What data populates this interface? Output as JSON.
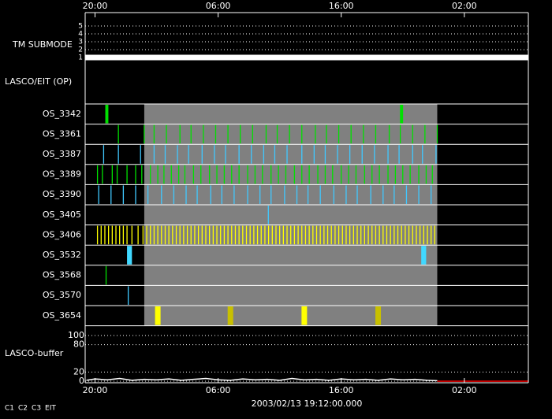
{
  "chart_data": {
    "type": "timeline",
    "date_label": "2003/02/13 19:12:00.000",
    "xlim": [
      19.2,
      55.2
    ],
    "xticks": [
      {
        "value": 20,
        "label": "20:00"
      },
      {
        "value": 30,
        "label": "06:00"
      },
      {
        "value": 40,
        "label": "16:00"
      },
      {
        "value": 50,
        "label": "02:00"
      }
    ],
    "submode": {
      "label": "TM SUBMODE",
      "ylim": [
        1,
        5
      ],
      "yticks": [
        1,
        2,
        3,
        4,
        5
      ],
      "x": [
        19.2,
        55.2
      ],
      "values": [
        1,
        1
      ],
      "color": "#ffffff"
    },
    "section_label": "LASCO/EIT (OP)",
    "window": [
      24.0,
      47.8
    ],
    "series": [
      {
        "name": "OS_3342",
        "color": "#00e000",
        "duration": 0.25,
        "times": [
          20.96,
          44.9
        ]
      },
      {
        "name": "OS_3361",
        "color": "#00e000",
        "times": [
          21.9,
          24.0,
          24.8,
          25.8,
          26.9,
          27.8,
          28.8,
          29.8,
          30.8,
          31.8,
          32.8,
          33.9,
          34.8,
          35.8,
          36.8,
          37.9,
          38.8,
          39.8,
          40.8,
          41.8,
          42.8,
          43.9,
          44.8,
          45.8,
          46.8,
          47.8
        ]
      },
      {
        "name": "OS_3387",
        "color": "#40c8ff",
        "times": [
          20.7,
          21.9,
          23.7,
          24.8,
          25.7,
          26.7,
          27.6,
          28.7,
          29.7,
          30.6,
          31.7,
          32.7,
          33.7,
          34.6,
          35.6,
          36.8,
          37.8,
          38.7,
          39.7,
          40.7,
          41.7,
          42.7,
          43.8,
          44.7,
          45.8,
          46.6,
          47.7
        ]
      },
      {
        "name": "OS_3389",
        "color": "#00e000",
        "times": [
          20.2,
          20.6,
          21.4,
          21.8,
          22.6,
          23.3,
          23.8,
          24.5,
          25.1,
          25.6,
          26.2,
          26.8,
          27.3,
          28.0,
          28.6,
          29.3,
          29.9,
          30.5,
          31.1,
          31.7,
          32.4,
          33.0,
          33.6,
          34.3,
          34.9,
          35.5,
          36.2,
          36.8,
          37.4,
          38.1,
          38.7,
          39.3,
          40.0,
          40.6,
          41.2,
          41.9,
          42.5,
          43.1,
          43.8,
          44.4,
          45.0,
          45.6,
          46.3,
          46.9,
          47.4
        ]
      },
      {
        "name": "OS_3390",
        "color": "#40c8ff",
        "times": [
          20.3,
          21.3,
          22.3,
          23.3,
          24.3,
          25.4,
          26.4,
          27.4,
          28.3,
          29.4,
          30.3,
          31.3,
          32.4,
          33.4,
          34.3,
          35.4,
          36.4,
          37.3,
          38.3,
          39.4,
          40.4,
          41.3,
          42.4,
          43.4,
          44.3,
          45.3,
          46.3,
          47.3
        ]
      },
      {
        "name": "OS_3405",
        "color": "#40c8ff",
        "times": [
          34.08
        ]
      },
      {
        "name": "OS_3406",
        "color": "#ffff00",
        "times": [
          20.2,
          20.5,
          20.8,
          21.1,
          21.4,
          21.7,
          22.0,
          22.3,
          22.6,
          23.0,
          23.5,
          23.9,
          24.2,
          24.5,
          24.8,
          25.1,
          25.4,
          25.7,
          26.0,
          26.3,
          26.6,
          26.9,
          27.2,
          27.5,
          27.8,
          28.1,
          28.4,
          28.7,
          29.0,
          29.3,
          29.6,
          29.9,
          30.2,
          30.5,
          30.8,
          31.1,
          31.4,
          31.7,
          32.0,
          32.3,
          32.6,
          32.9,
          33.2,
          33.5,
          33.8,
          34.1,
          34.4,
          34.7,
          35.0,
          35.3,
          35.6,
          35.9,
          36.2,
          36.5,
          36.8,
          37.1,
          37.4,
          37.7,
          38.0,
          38.3,
          38.6,
          38.9,
          39.2,
          39.5,
          39.8,
          40.1,
          40.4,
          40.7,
          41.0,
          41.3,
          41.6,
          41.9,
          42.2,
          42.5,
          42.8,
          43.1,
          43.4,
          43.7,
          44.0,
          44.3,
          44.6,
          44.9,
          45.2,
          45.5,
          45.8,
          46.1,
          46.4,
          46.7,
          47.0,
          47.3,
          47.6
        ]
      },
      {
        "name": "OS_3532",
        "color": "#40d8ff",
        "duration": 0.4,
        "times": [
          22.8,
          46.7
        ]
      },
      {
        "name": "OS_3568",
        "color": "#00e000",
        "times": [
          20.9
        ]
      },
      {
        "name": "OS_3570",
        "color": "#40c8ff",
        "times": [
          22.7
        ]
      },
      {
        "name": "OS_3654",
        "color": "#ffff00",
        "duration": 0.45,
        "times": [
          25.1,
          31.0,
          37.0,
          43.0
        ],
        "colors": [
          "#ffff00",
          "#c8c000",
          "#ffff00",
          "#c8c000"
        ]
      }
    ],
    "buffer": {
      "label": "LASCO-buffer",
      "ylim": [
        0,
        100
      ],
      "yticks": [
        0,
        20,
        80,
        100
      ],
      "series": [
        {
          "color": "#ffffff",
          "x": [
            19.3,
            20,
            21,
            22,
            23,
            24,
            25,
            26,
            27,
            28,
            29,
            30,
            31,
            32,
            33,
            34,
            35,
            36,
            37,
            38,
            39,
            40,
            41,
            42,
            43,
            44,
            45,
            46,
            47,
            47.8
          ],
          "values": [
            2,
            5,
            3,
            6,
            2,
            4,
            3,
            5,
            2,
            4,
            6,
            3,
            2,
            5,
            3,
            4,
            2,
            6,
            3,
            4,
            2,
            5,
            3,
            4,
            2,
            5,
            3,
            4,
            2,
            1
          ]
        },
        {
          "color": "#ff0000",
          "x": [
            47.8,
            55.2
          ],
          "values": [
            0,
            0
          ]
        }
      ]
    },
    "legend": [
      {
        "label": "C1",
        "color": "#ff2020"
      },
      {
        "label": "C2",
        "color": "#00e000"
      },
      {
        "label": "C3",
        "color": "#ffffff"
      },
      {
        "label": "EIT",
        "color": "#ffffff"
      }
    ]
  }
}
